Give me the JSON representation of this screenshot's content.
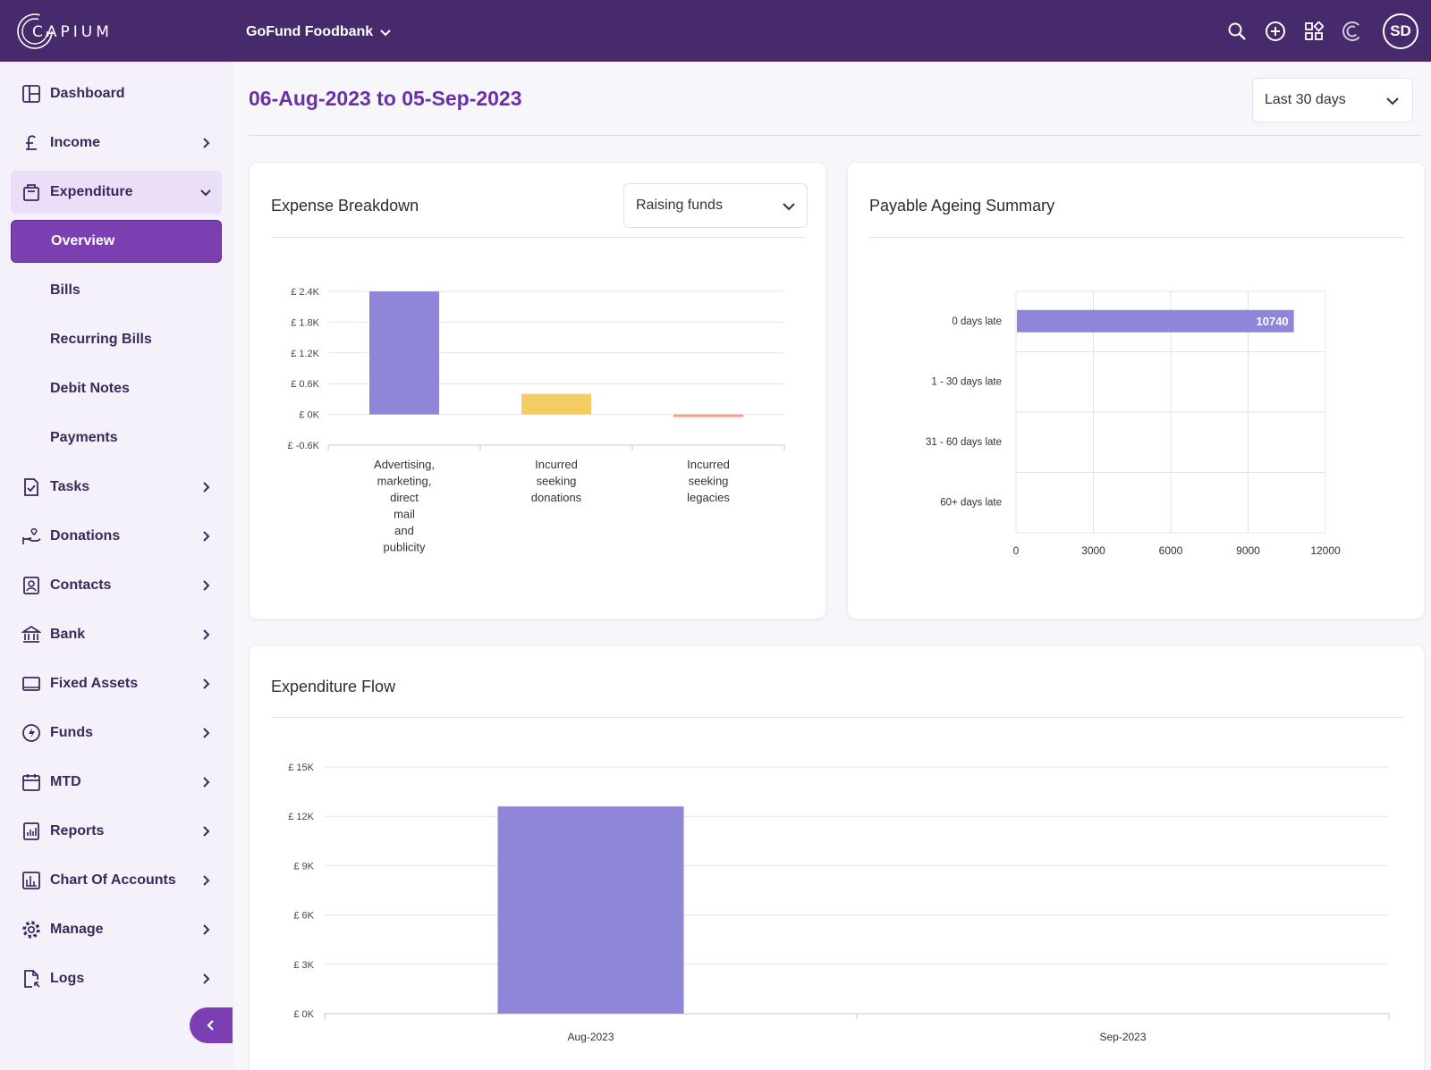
{
  "app": {
    "logo_text": "CAPIUM",
    "org_name": "GoFund Foodbank",
    "avatar_initials": "SD"
  },
  "colors": {
    "brand": "#462a6b",
    "accent": "#7b3fb1",
    "bar_primary": "#8f86d9",
    "bar_yellow": "#f5cc63",
    "bar_salmon": "#f3a08d"
  },
  "sidebar": {
    "items": [
      {
        "label": "Dashboard",
        "icon": "dashboard-icon"
      },
      {
        "label": "Income",
        "icon": "pound-icon"
      },
      {
        "label": "Expenditure",
        "icon": "bag-icon"
      },
      {
        "label": "Overview"
      },
      {
        "label": "Bills"
      },
      {
        "label": "Recurring Bills"
      },
      {
        "label": "Debit Notes"
      },
      {
        "label": "Payments"
      },
      {
        "label": "Tasks",
        "icon": "tasks-icon"
      },
      {
        "label": "Donations",
        "icon": "donations-icon"
      },
      {
        "label": "Contacts",
        "icon": "contacts-icon"
      },
      {
        "label": "Bank",
        "icon": "bank-icon"
      },
      {
        "label": "Fixed Assets",
        "icon": "laptop-icon"
      },
      {
        "label": "Funds",
        "icon": "funds-icon"
      },
      {
        "label": "MTD",
        "icon": "calendar-icon"
      },
      {
        "label": "Reports",
        "icon": "reports-icon"
      },
      {
        "label": "Chart Of Accounts",
        "icon": "chart-icon"
      },
      {
        "label": "Manage",
        "icon": "gear-icon"
      },
      {
        "label": "Logs",
        "icon": "logs-icon"
      }
    ]
  },
  "header": {
    "date_range": "06-Aug-2023 to 05-Sep-2023",
    "period_select": "Last 30 days"
  },
  "expense_breakdown": {
    "title": "Expense Breakdown",
    "filter": "Raising funds"
  },
  "payable_ageing": {
    "title": "Payable Ageing Summary"
  },
  "expenditure_flow": {
    "title": "Expenditure Flow"
  },
  "chart_data": [
    {
      "id": "expense_breakdown",
      "type": "bar",
      "title": "Expense Breakdown",
      "categories": [
        [
          "Advertising,",
          "marketing,",
          "direct",
          "mail",
          "and",
          "publicity"
        ],
        [
          "Incurred",
          "seeking",
          "donations"
        ],
        [
          "Incurred",
          "seeking",
          "legacies"
        ]
      ],
      "values": [
        2400,
        400,
        -30
      ],
      "yticks": [
        "£ 2.4K",
        "£ 1.8K",
        "£ 1.2K",
        "£ 0.6K",
        "£ 0K",
        "£ -0.6K"
      ],
      "ylim": [
        -600,
        2400
      ],
      "colors": [
        "#8f86d9",
        "#f5cc63",
        "#f3a08d"
      ]
    },
    {
      "id": "payable_ageing",
      "type": "bar",
      "orientation": "horizontal",
      "title": "Payable Ageing Summary",
      "categories": [
        "0 days late",
        "1 - 30 days late",
        "31 - 60 days late",
        "60+ days late"
      ],
      "values": [
        10740,
        0,
        0,
        0
      ],
      "data_labels": [
        "10740",
        "",
        "",
        ""
      ],
      "xticks": [
        "0",
        "3000",
        "6000",
        "9000",
        "12000"
      ],
      "xlim": [
        0,
        12000
      ]
    },
    {
      "id": "expenditure_flow",
      "type": "bar",
      "title": "Expenditure Flow",
      "categories": [
        "Aug-2023",
        "Sep-2023"
      ],
      "values": [
        12600,
        0
      ],
      "yticks": [
        "£ 15K",
        "£ 12K",
        "£ 9K",
        "£ 6K",
        "£ 3K",
        "£ 0K"
      ],
      "ylim": [
        0,
        15000
      ]
    }
  ]
}
